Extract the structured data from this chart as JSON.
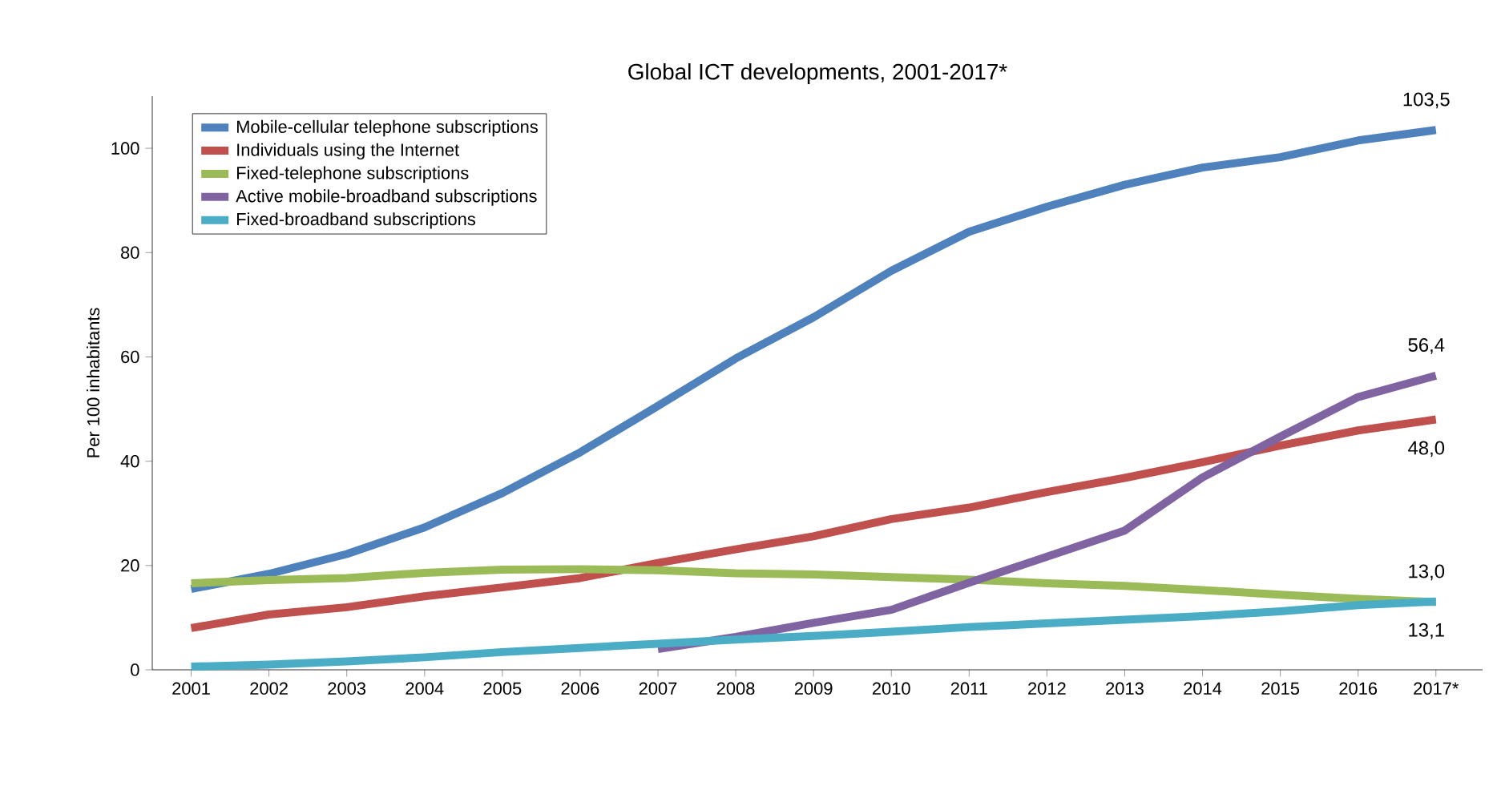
{
  "chart_data": {
    "type": "line",
    "title": "Global ICT developments, 2001-2017*",
    "ylabel": "Per 100 inhabitants",
    "categories": [
      "2001",
      "2002",
      "2003",
      "2004",
      "2005",
      "2006",
      "2007",
      "2008",
      "2009",
      "2010",
      "2011",
      "2012",
      "2013",
      "2014",
      "2015",
      "2016",
      "2017*"
    ],
    "ylim": [
      0,
      110
    ],
    "yticks": [
      0,
      20,
      40,
      60,
      80,
      100
    ],
    "grid": false,
    "legend": "top left",
    "marker": "none",
    "line_style": "solid",
    "series": [
      {
        "name": "Mobile-cellular telephone subscriptions",
        "color": "#4f81bd",
        "values": [
          15.5,
          18.4,
          22.2,
          27.3,
          33.9,
          41.7,
          50.6,
          59.7,
          67.6,
          76.5,
          84.0,
          88.8,
          93.0,
          96.3,
          98.3,
          101.5,
          103.5
        ],
        "value_labels": [
          null,
          null,
          null,
          null,
          null,
          null,
          null,
          null,
          null,
          null,
          null,
          null,
          null,
          null,
          null,
          null,
          "103,5"
        ]
      },
      {
        "name": "Individuals using the Internet",
        "color": "#c0504d",
        "values": [
          8.0,
          10.6,
          12.0,
          14.1,
          15.8,
          17.6,
          20.5,
          23.1,
          25.6,
          28.9,
          31.1,
          34.1,
          36.8,
          39.8,
          43.0,
          45.9,
          48.0
        ],
        "value_labels": [
          null,
          null,
          null,
          null,
          null,
          null,
          null,
          null,
          null,
          null,
          null,
          null,
          null,
          null,
          null,
          null,
          "48,0"
        ]
      },
      {
        "name": "Fixed-telephone subscriptions",
        "color": "#9bbb59",
        "values": [
          16.6,
          17.2,
          17.6,
          18.6,
          19.2,
          19.3,
          19.1,
          18.5,
          18.3,
          17.8,
          17.3,
          16.6,
          16.1,
          15.3,
          14.4,
          13.6,
          13.0
        ],
        "value_labels": [
          null,
          null,
          null,
          null,
          null,
          null,
          null,
          null,
          null,
          null,
          null,
          null,
          null,
          null,
          null,
          null,
          "13,0"
        ]
      },
      {
        "name": "Active mobile-broadband subscriptions",
        "color": "#8064a2",
        "values": [
          null,
          null,
          null,
          null,
          null,
          null,
          4.0,
          6.3,
          9.0,
          11.5,
          16.7,
          21.7,
          26.7,
          36.9,
          44.7,
          52.3,
          56.4
        ],
        "value_labels": [
          null,
          null,
          null,
          null,
          null,
          null,
          null,
          null,
          null,
          null,
          null,
          null,
          null,
          null,
          null,
          null,
          "56,4"
        ]
      },
      {
        "name": "Fixed-broadband subscriptions",
        "color": "#4bacc6",
        "values": [
          0.6,
          1.0,
          1.6,
          2.4,
          3.4,
          4.2,
          5.0,
          5.8,
          6.5,
          7.3,
          8.2,
          8.9,
          9.6,
          10.3,
          11.2,
          12.4,
          13.1
        ],
        "value_labels": [
          null,
          null,
          null,
          null,
          null,
          null,
          null,
          null,
          null,
          null,
          null,
          null,
          null,
          null,
          null,
          null,
          "13,1"
        ]
      }
    ]
  }
}
